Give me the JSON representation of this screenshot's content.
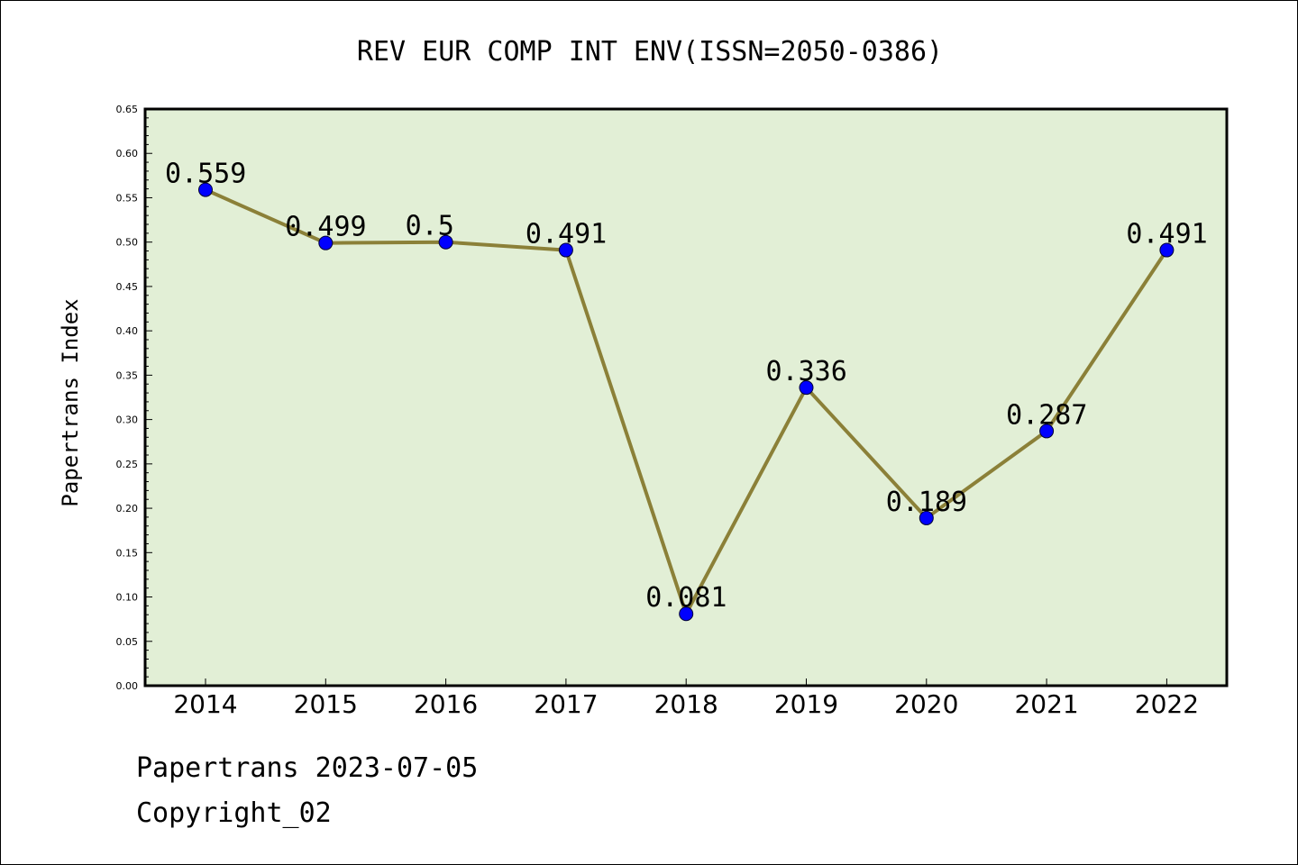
{
  "chart_data": {
    "type": "line",
    "title": "REV EUR COMP INT ENV(ISSN=2050-0386)",
    "xlabel": "",
    "ylabel": "Papertrans Index",
    "categories": [
      "2014",
      "2015",
      "2016",
      "2017",
      "2018",
      "2019",
      "2020",
      "2021",
      "2022"
    ],
    "values": [
      0.559,
      0.499,
      0.5,
      0.491,
      0.081,
      0.336,
      0.189,
      0.287,
      0.491
    ],
    "value_labels": [
      "0.559",
      "0.499",
      "0.5",
      "0.491",
      "0.081",
      "0.336",
      "0.189",
      "0.287",
      "0.491"
    ],
    "ylim": [
      0,
      0.65
    ],
    "yticks": [
      "0.00",
      "0.05",
      "0.10",
      "0.15",
      "0.20",
      "0.25",
      "0.30",
      "0.35",
      "0.40",
      "0.45",
      "0.50",
      "0.55",
      "0.60",
      "0.65"
    ],
    "grid": false,
    "legend": "none",
    "colors": {
      "plot_background": "#e2efd6",
      "line": "#8b8038",
      "marker": "#0000ff"
    }
  },
  "footer": {
    "date_line": "Papertrans 2023-07-05",
    "copyright": "Copyright_02"
  }
}
